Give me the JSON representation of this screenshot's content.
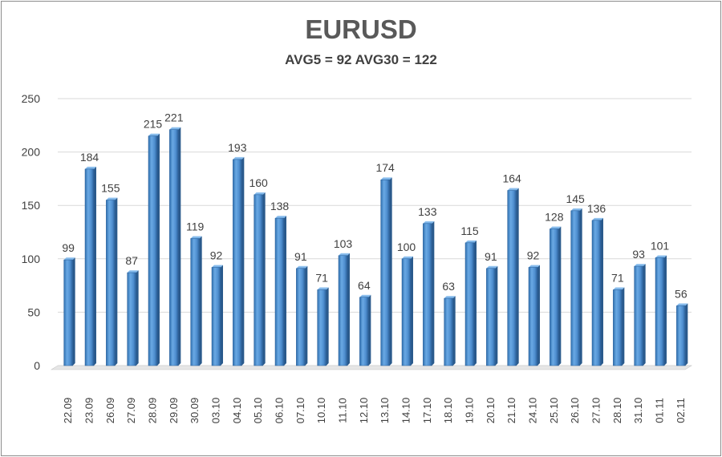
{
  "chart_data": {
    "type": "bar",
    "title": "EURUSD",
    "subtitle": "AVG5 = 92 AVG30 = 122",
    "xlabel": "",
    "ylabel": "",
    "ylim": [
      0,
      250
    ],
    "yticks": [
      0,
      50,
      100,
      150,
      200,
      250
    ],
    "grid": true,
    "legend": "none",
    "bar_color": "#4f8fd0",
    "categories": [
      "22.09",
      "23.09",
      "26.09",
      "27.09",
      "28.09",
      "29.09",
      "30.09",
      "03.10",
      "04.10",
      "05.10",
      "06.10",
      "07.10",
      "10.10",
      "11.10",
      "12.10",
      "13.10",
      "14.10",
      "17.10",
      "18.10",
      "19.10",
      "20.10",
      "21.10",
      "24.10",
      "25.10",
      "26.10",
      "27.10",
      "28.10",
      "31.10",
      "01.11",
      "02.11"
    ],
    "values": [
      99,
      184,
      155,
      87,
      215,
      221,
      119,
      92,
      193,
      160,
      138,
      91,
      71,
      103,
      64,
      174,
      100,
      133,
      63,
      115,
      91,
      164,
      92,
      128,
      145,
      136,
      71,
      93,
      101,
      56
    ]
  }
}
